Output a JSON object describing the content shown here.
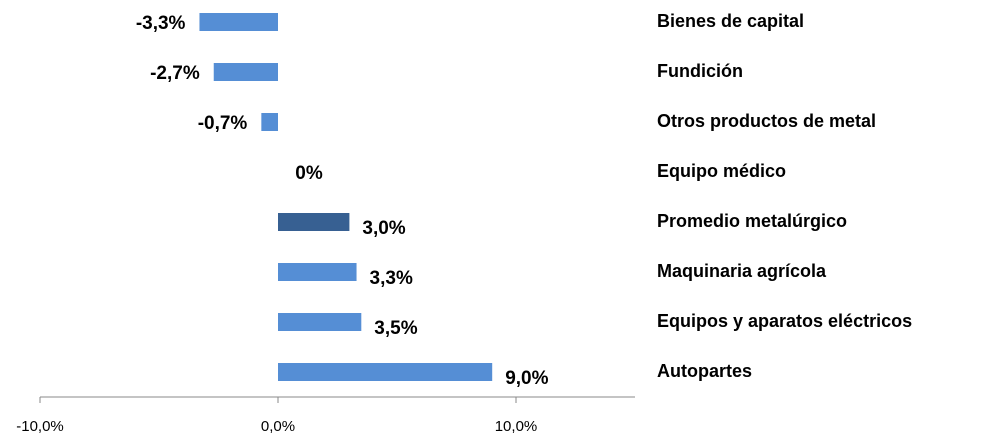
{
  "chart_data": {
    "type": "bar",
    "orientation": "horizontal",
    "categories": [
      "Bienes de capital",
      "Fundición",
      "Otros productos de metal",
      "Equipo médico",
      "Promedio metalúrgico",
      "Maquinaria agrícola",
      "Equipos y aparatos eléctricos",
      "Autopartes"
    ],
    "values": [
      -3.3,
      -2.7,
      -0.7,
      0,
      3.0,
      3.3,
      3.5,
      9.0
    ],
    "value_labels": [
      "-3,3%",
      "-2,7%",
      "-0,7%",
      "0%",
      "3,0%",
      "3,3%",
      "3,5%",
      "9,0%"
    ],
    "colors": [
      "#558ed5",
      "#558ed5",
      "#558ed5",
      "#558ed5",
      "#376092",
      "#558ed5",
      "#558ed5",
      "#558ed5"
    ],
    "xlim": [
      -10,
      15
    ],
    "xticks": [
      {
        "value": -10,
        "label": "-10,0%"
      },
      {
        "value": 0,
        "label": "0,0%"
      },
      {
        "value": 10,
        "label": "10,0%"
      }
    ],
    "grid": false
  }
}
